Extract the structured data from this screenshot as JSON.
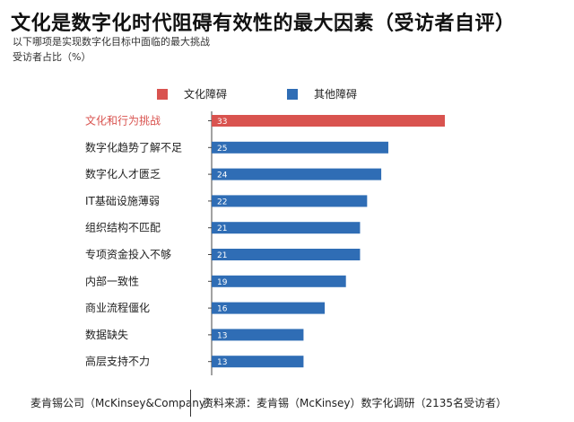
{
  "title": "文化是数字化时代阻碍有效性的最大因素（受访者自评）",
  "subtitle_line1": "以下哪项是实现数字化目标中面临的最大挑战",
  "subtitle_line2": "受访者占比（%）",
  "footer": {
    "company": "麦肯锡公司（McKinsey&Company）",
    "source": "资料来源：麦肯锡（McKinsey）数字化调研（2135名受访者）"
  },
  "colors": {
    "culture": "#d9534f",
    "other": "#2f6db5",
    "highlight_label": "#d9534f",
    "normal_label": "#222222"
  },
  "chart_data": {
    "type": "bar",
    "orientation": "horizontal",
    "categories": [
      "文化和行为挑战",
      "数字化趋势了解不足",
      "数字化人才匮乏",
      "IT基础设施薄弱",
      "组织结构不匹配",
      "专项资金投入不够",
      "内部一致性",
      "商业流程僵化",
      "数据缺失",
      "高层支持不力"
    ],
    "values": [
      33,
      25,
      24,
      22,
      21,
      21,
      19,
      16,
      13,
      13
    ],
    "groups": [
      "culture",
      "other",
      "other",
      "other",
      "other",
      "other",
      "other",
      "other",
      "other",
      "other"
    ],
    "legend": [
      {
        "key": "culture",
        "label": "文化障碍"
      },
      {
        "key": "other",
        "label": "其他障碍"
      }
    ],
    "legend_position": "top",
    "xlim": [
      0,
      33
    ],
    "grid": false
  }
}
